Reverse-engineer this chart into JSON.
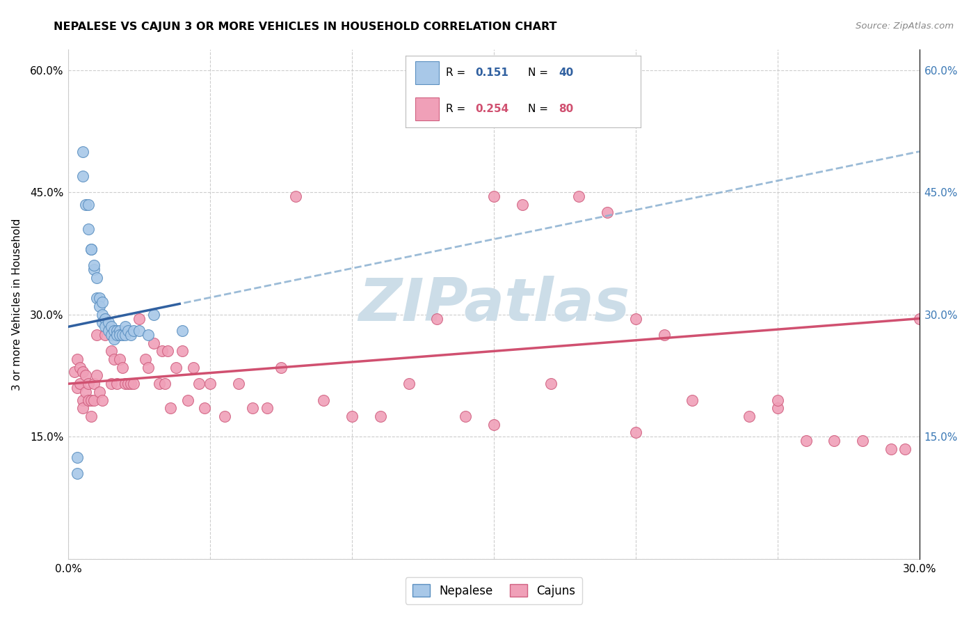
{
  "title": "NEPALESE VS CAJUN 3 OR MORE VEHICLES IN HOUSEHOLD CORRELATION CHART",
  "source": "Source: ZipAtlas.com",
  "ylabel": "3 or more Vehicles in Household",
  "xmin": 0.0,
  "xmax": 0.3,
  "ymin": 0.0,
  "ymax": 0.625,
  "yticks": [
    0.0,
    0.15,
    0.3,
    0.45,
    0.6
  ],
  "ytick_labels_left": [
    "",
    "15.0%",
    "30.0%",
    "45.0%",
    "60.0%"
  ],
  "ytick_labels_right": [
    "",
    "15.0%",
    "30.0%",
    "45.0%",
    "60.0%"
  ],
  "xticks": [
    0.0,
    0.05,
    0.1,
    0.15,
    0.2,
    0.25,
    0.3
  ],
  "xtick_labels": [
    "0.0%",
    "",
    "",
    "",
    "",
    "",
    "30.0%"
  ],
  "legend_label1": "Nepalese",
  "legend_label2": "Cajuns",
  "blue_color": "#a8c8e8",
  "pink_color": "#f0a0b8",
  "blue_edge": "#5a8fc0",
  "pink_edge": "#d06080",
  "regression_blue_solid_color": "#3060a0",
  "regression_blue_dash_color": "#8ab0d0",
  "regression_pink_color": "#d05070",
  "watermark_text": "ZIPatlas",
  "watermark_color": "#ccdde8",
  "background_color": "#ffffff",
  "grid_color": "#c8c8c8",
  "nepalese_x": [
    0.003,
    0.005,
    0.005,
    0.006,
    0.007,
    0.007,
    0.008,
    0.008,
    0.009,
    0.009,
    0.01,
    0.01,
    0.011,
    0.011,
    0.012,
    0.012,
    0.012,
    0.013,
    0.013,
    0.014,
    0.014,
    0.015,
    0.015,
    0.016,
    0.016,
    0.017,
    0.017,
    0.018,
    0.018,
    0.019,
    0.02,
    0.02,
    0.021,
    0.022,
    0.023,
    0.025,
    0.028,
    0.03,
    0.04,
    0.003
  ],
  "nepalese_y": [
    0.125,
    0.5,
    0.47,
    0.435,
    0.435,
    0.405,
    0.38,
    0.38,
    0.355,
    0.36,
    0.345,
    0.32,
    0.32,
    0.31,
    0.315,
    0.3,
    0.29,
    0.295,
    0.285,
    0.29,
    0.28,
    0.285,
    0.275,
    0.28,
    0.27,
    0.28,
    0.275,
    0.28,
    0.275,
    0.275,
    0.285,
    0.275,
    0.28,
    0.275,
    0.28,
    0.28,
    0.275,
    0.3,
    0.28,
    0.105
  ],
  "cajun_x": [
    0.002,
    0.003,
    0.003,
    0.004,
    0.004,
    0.005,
    0.005,
    0.005,
    0.006,
    0.006,
    0.007,
    0.007,
    0.008,
    0.008,
    0.009,
    0.009,
    0.01,
    0.01,
    0.011,
    0.012,
    0.013,
    0.013,
    0.014,
    0.015,
    0.015,
    0.016,
    0.017,
    0.018,
    0.019,
    0.02,
    0.021,
    0.022,
    0.023,
    0.025,
    0.027,
    0.028,
    0.03,
    0.032,
    0.033,
    0.034,
    0.035,
    0.036,
    0.038,
    0.04,
    0.042,
    0.044,
    0.046,
    0.048,
    0.05,
    0.055,
    0.06,
    0.065,
    0.07,
    0.075,
    0.08,
    0.09,
    0.1,
    0.11,
    0.12,
    0.13,
    0.14,
    0.15,
    0.16,
    0.17,
    0.18,
    0.19,
    0.2,
    0.21,
    0.22,
    0.24,
    0.25,
    0.26,
    0.27,
    0.28,
    0.29,
    0.295,
    0.3,
    0.15,
    0.2,
    0.25
  ],
  "cajun_y": [
    0.23,
    0.245,
    0.21,
    0.235,
    0.215,
    0.195,
    0.185,
    0.23,
    0.205,
    0.225,
    0.195,
    0.215,
    0.195,
    0.175,
    0.195,
    0.215,
    0.275,
    0.225,
    0.205,
    0.195,
    0.275,
    0.295,
    0.285,
    0.215,
    0.255,
    0.245,
    0.215,
    0.245,
    0.235,
    0.215,
    0.215,
    0.215,
    0.215,
    0.295,
    0.245,
    0.235,
    0.265,
    0.215,
    0.255,
    0.215,
    0.255,
    0.185,
    0.235,
    0.255,
    0.195,
    0.235,
    0.215,
    0.185,
    0.215,
    0.175,
    0.215,
    0.185,
    0.185,
    0.235,
    0.445,
    0.195,
    0.175,
    0.175,
    0.215,
    0.295,
    0.175,
    0.445,
    0.435,
    0.215,
    0.445,
    0.425,
    0.295,
    0.275,
    0.195,
    0.175,
    0.185,
    0.145,
    0.145,
    0.145,
    0.135,
    0.135,
    0.295,
    0.165,
    0.155,
    0.195
  ]
}
